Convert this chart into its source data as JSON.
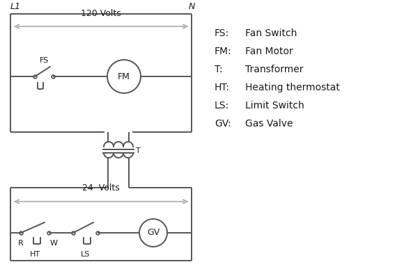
{
  "background_color": "#ffffff",
  "line_color": "#555555",
  "text_color": "#1a1a1a",
  "legend": [
    [
      "FS:",
      "Fan Switch"
    ],
    [
      "FM:",
      "Fan Motor"
    ],
    [
      "T:",
      "Transformer"
    ],
    [
      "HT:",
      "Heating thermostat"
    ],
    [
      "LS:",
      "Limit Switch"
    ],
    [
      "GV:",
      "Gas Valve"
    ]
  ],
  "L1_label": "L1",
  "N_label": "N",
  "volts120_label": "120 Volts",
  "volts24_label": "24  Volts",
  "FS_label": "FS",
  "FM_label": "FM",
  "T_label": "T",
  "R_label": "R",
  "W_label": "W",
  "HT_label": "HT",
  "LS_label": "LS",
  "GV_label": "GV"
}
